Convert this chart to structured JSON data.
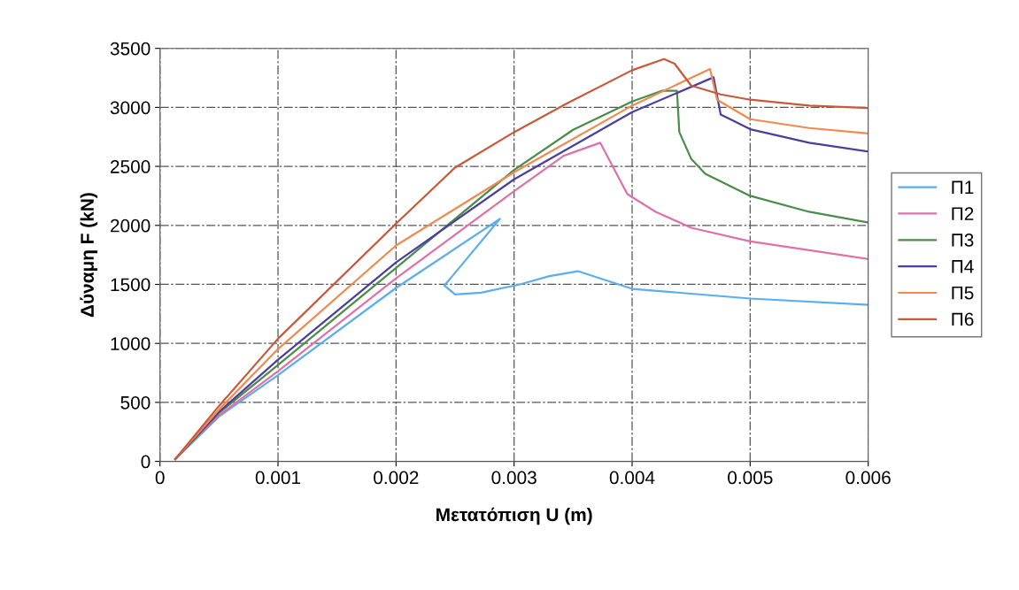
{
  "chart_data": {
    "type": "line",
    "xlabel": "Μετατόπιση U (m)",
    "ylabel": "Δύναμη F (kN)",
    "xlim": [
      0,
      0.006
    ],
    "ylim": [
      0,
      3500
    ],
    "xticks": [
      0,
      0.001,
      0.002,
      0.003,
      0.004,
      0.005,
      0.006
    ],
    "yticks": [
      0,
      500,
      1000,
      1500,
      2000,
      2500,
      3000,
      3500
    ],
    "grid": true,
    "legend": "right",
    "marker": "none",
    "line_style": "solid",
    "series": [
      {
        "name": "Π1",
        "color": "#5aaef0",
        "x": [
          0.00013,
          0.0005,
          0.001,
          0.002,
          0.00288,
          0.00241,
          0.0025,
          0.00272,
          0.00305,
          0.0033,
          0.00354,
          0.004,
          0.005,
          0.006
        ],
        "values": [
          20,
          380,
          730,
          1470,
          2055,
          1490,
          1415,
          1430,
          1500,
          1570,
          1612,
          1462,
          1380,
          1327
        ]
      },
      {
        "name": "Π2",
        "color": "#e070a8",
        "x": [
          0.00013,
          0.0005,
          0.001,
          0.002,
          0.003,
          0.00342,
          0.00373,
          0.00396,
          0.0042,
          0.0045,
          0.005,
          0.006
        ],
        "values": [
          20,
          390,
          765,
          1552,
          2290,
          2590,
          2700,
          2265,
          2115,
          1980,
          1865,
          1715
        ]
      },
      {
        "name": "Π3",
        "color": "#4a8c4a",
        "x": [
          0.00013,
          0.0005,
          0.001,
          0.002,
          0.003,
          0.0035,
          0.004,
          0.00425,
          0.00438,
          0.0044,
          0.0045,
          0.00462,
          0.005,
          0.0055,
          0.006
        ],
        "values": [
          20,
          410,
          817,
          1640,
          2470,
          2810,
          3050,
          3140,
          3140,
          2790,
          2565,
          2437,
          2250,
          2115,
          2025
        ]
      },
      {
        "name": "Π4",
        "color": "#4a3fa0",
        "x": [
          0.00013,
          0.0005,
          0.001,
          0.002,
          0.003,
          0.004,
          0.00469,
          0.00475,
          0.00485,
          0.005,
          0.0055,
          0.006
        ],
        "values": [
          20,
          420,
          862,
          1687,
          2390,
          2960,
          3255,
          2940,
          2890,
          2815,
          2700,
          2625
        ]
      },
      {
        "name": "Π5",
        "color": "#f08a50",
        "x": [
          0.00013,
          0.0005,
          0.001,
          0.002,
          0.003,
          0.004,
          0.00466,
          0.00472,
          0.005,
          0.0055,
          0.006
        ],
        "values": [
          20,
          440,
          952,
          1830,
          2450,
          3015,
          3325,
          3065,
          2900,
          2825,
          2780
        ]
      },
      {
        "name": "Π6",
        "color": "#c85a3a",
        "x": [
          0.00013,
          0.0005,
          0.001,
          0.002,
          0.0025,
          0.003,
          0.00345,
          0.004,
          0.00427,
          0.00436,
          0.0045,
          0.00475,
          0.005,
          0.0055,
          0.006
        ],
        "values": [
          20,
          470,
          1040,
          2015,
          2490,
          2790,
          3035,
          3315,
          3410,
          3370,
          3185,
          3110,
          3065,
          3015,
          2995
        ]
      }
    ]
  }
}
